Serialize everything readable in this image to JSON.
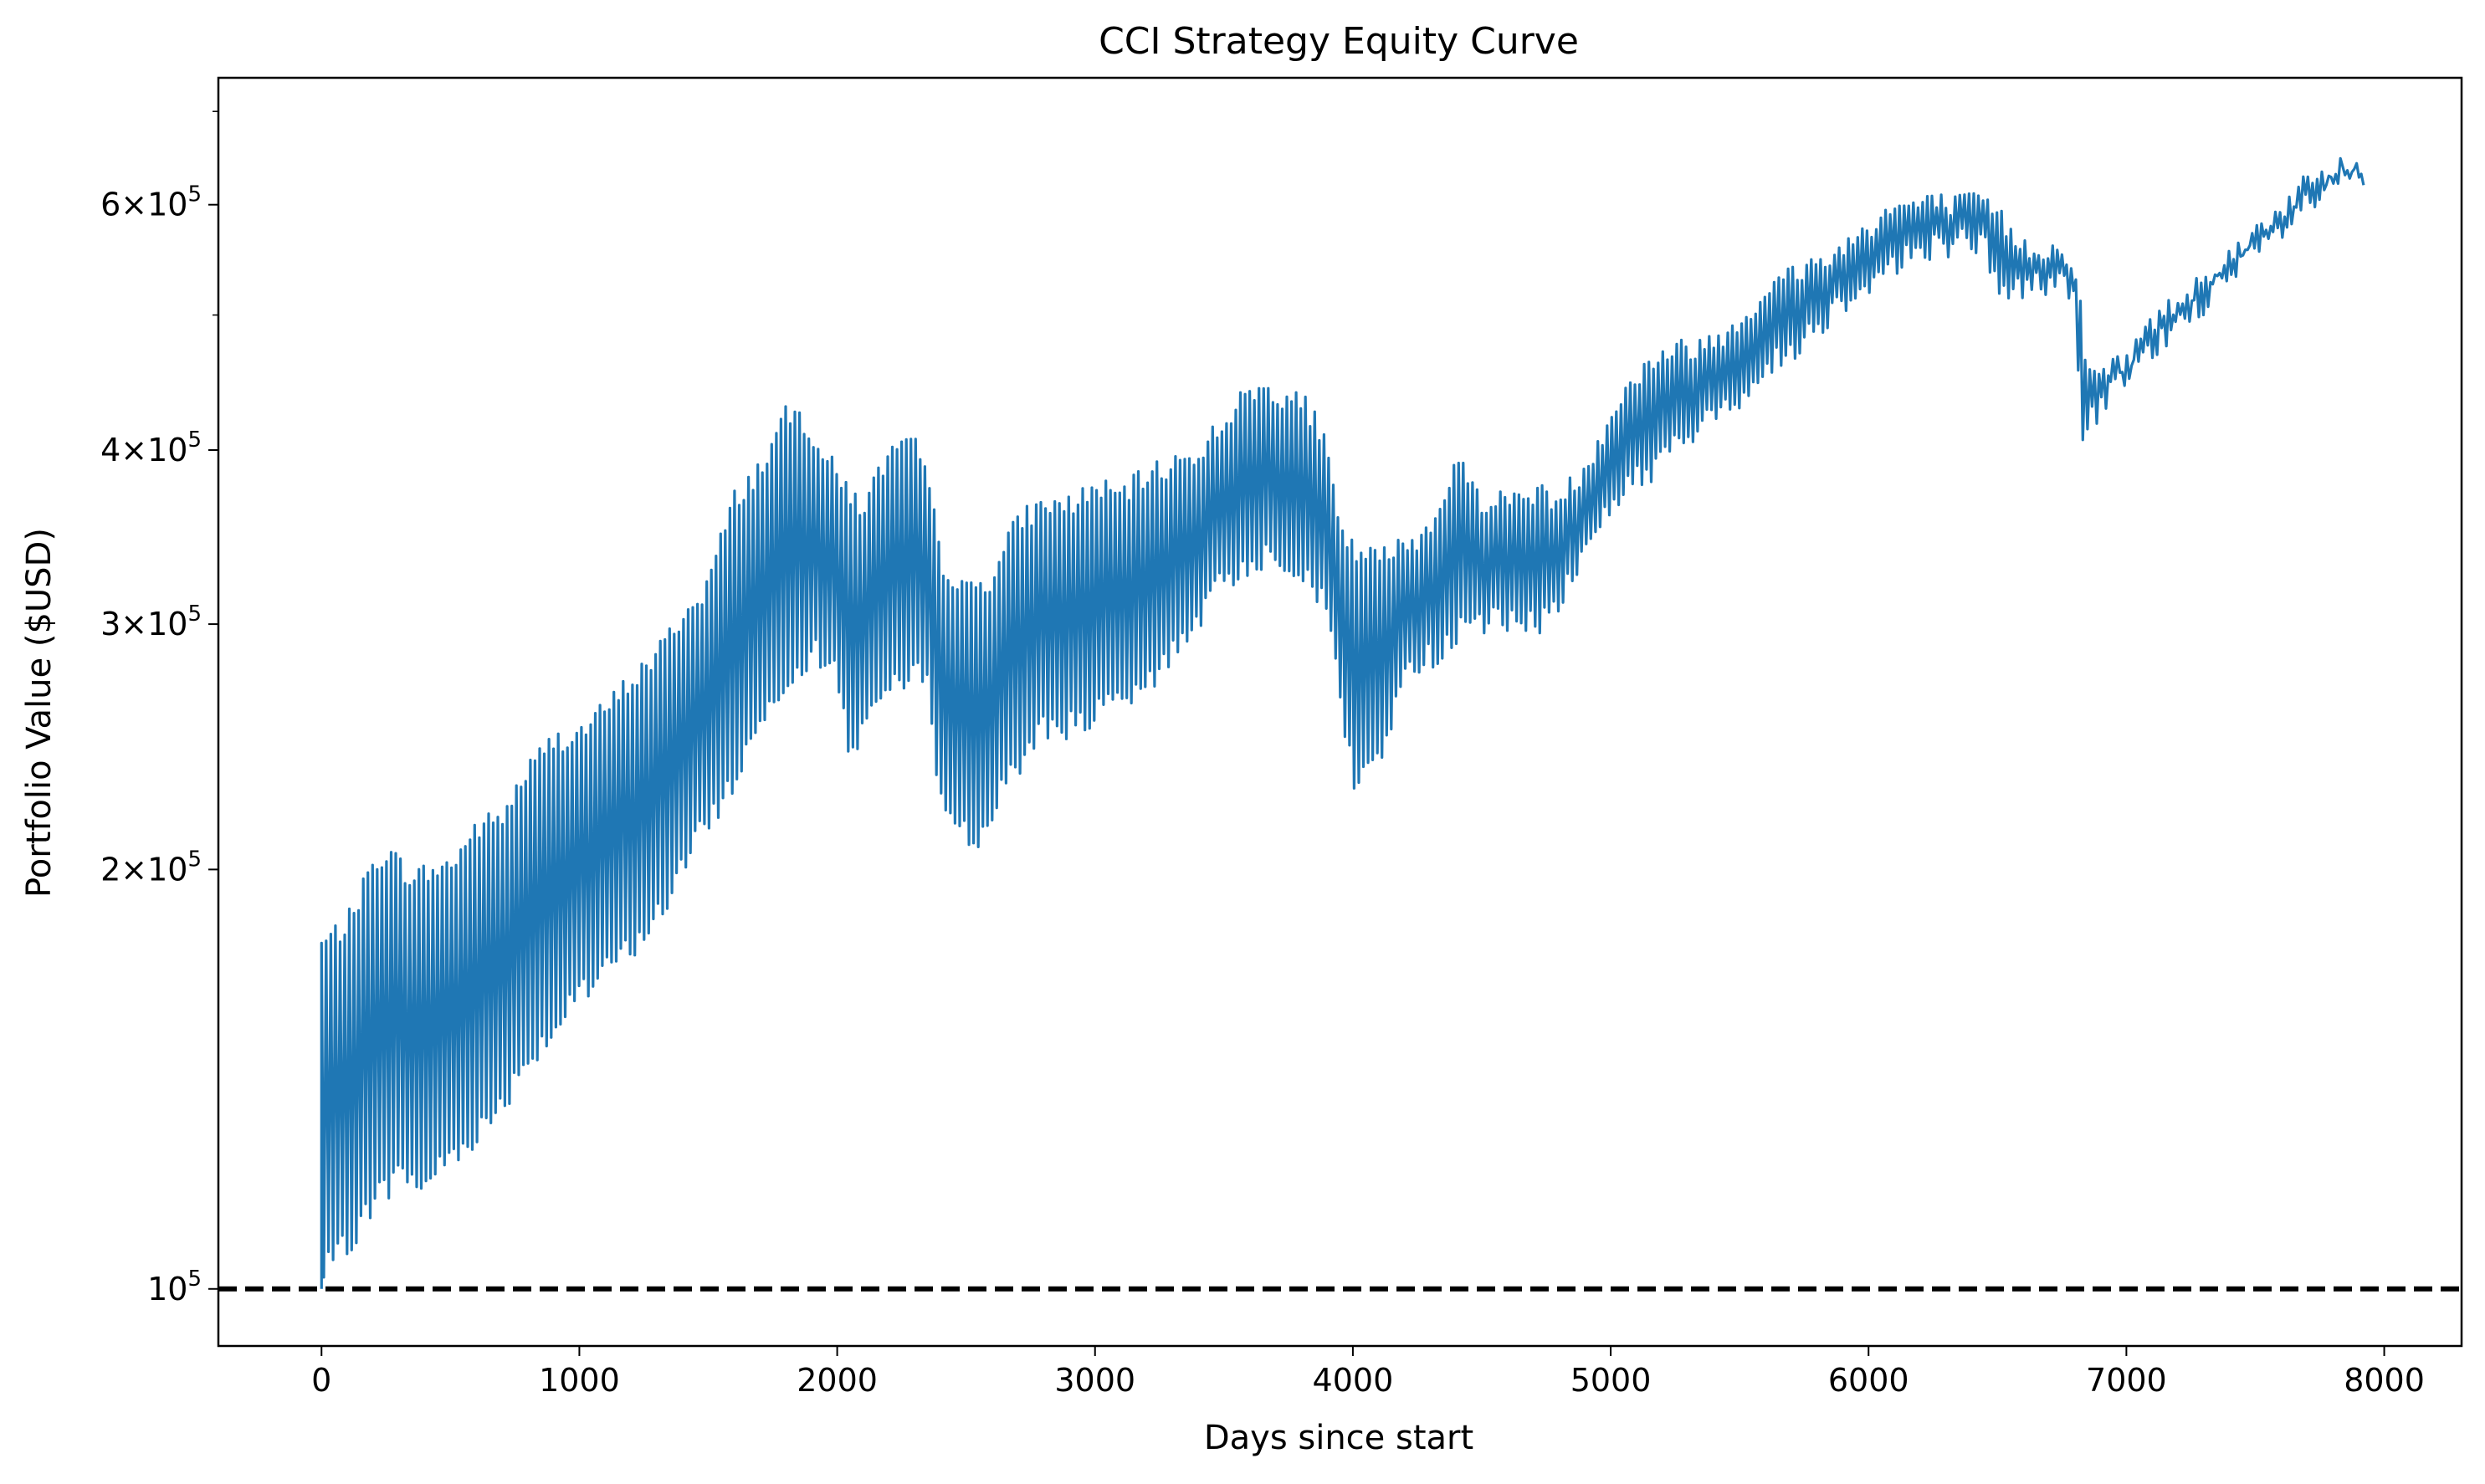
{
  "chart_data": {
    "type": "line",
    "title": "CCI Strategy Equity Curve",
    "xlabel": "Days since start",
    "ylabel": "Portfolio Value ($USD)",
    "xlim": [
      -400,
      8300
    ],
    "ylim": [
      91000,
      740000
    ],
    "yscale": "log",
    "grid": false,
    "x_ticks": [
      {
        "value": 0,
        "label": "0"
      },
      {
        "value": 1000,
        "label": "1000"
      },
      {
        "value": 2000,
        "label": "2000"
      },
      {
        "value": 3000,
        "label": "3000"
      },
      {
        "value": 4000,
        "label": "4000"
      },
      {
        "value": 5000,
        "label": "5000"
      },
      {
        "value": 6000,
        "label": "6000"
      },
      {
        "value": 7000,
        "label": "7000"
      },
      {
        "value": 8000,
        "label": "8000"
      }
    ],
    "y_ticks": [
      {
        "value": 100000,
        "mantissa": "",
        "exponent": "5"
      },
      {
        "value": 200000,
        "mantissa": "2",
        "exponent": "5"
      },
      {
        "value": 300000,
        "mantissa": "3",
        "exponent": "5"
      },
      {
        "value": 400000,
        "mantissa": "4",
        "exponent": "5"
      },
      {
        "value": 600000,
        "mantissa": "6",
        "exponent": "5"
      }
    ],
    "y_minor_ticks": [
      500000,
      700000
    ],
    "baseline": {
      "value": 100000,
      "style": "dashed",
      "color": "#000000"
    },
    "series": [
      {
        "color": "#1f77b4",
        "upper_envelope": [
          [
            0,
            180000
          ],
          [
            100,
            186000
          ],
          [
            200,
            205000
          ],
          [
            250,
            210000
          ],
          [
            350,
            201000
          ],
          [
            500,
            205000
          ],
          [
            600,
            218000
          ],
          [
            700,
            222000
          ],
          [
            800,
            240000
          ],
          [
            900,
            252000
          ],
          [
            1000,
            255000
          ],
          [
            1100,
            265000
          ],
          [
            1200,
            278000
          ],
          [
            1300,
            290000
          ],
          [
            1400,
            310000
          ],
          [
            1450,
            315000
          ],
          [
            1500,
            328000
          ],
          [
            1600,
            375000
          ],
          [
            1700,
            395000
          ],
          [
            1800,
            430000
          ],
          [
            1850,
            432000
          ],
          [
            1900,
            420000
          ],
          [
            2000,
            390000
          ],
          [
            2100,
            370000
          ],
          [
            2200,
            405000
          ],
          [
            2300,
            410000
          ],
          [
            2350,
            390000
          ],
          [
            2400,
            340000
          ],
          [
            2500,
            322000
          ],
          [
            2600,
            330000
          ],
          [
            2700,
            362000
          ],
          [
            2800,
            372000
          ],
          [
            2900,
            372000
          ],
          [
            3000,
            382000
          ],
          [
            3100,
            378000
          ],
          [
            3200,
            390000
          ],
          [
            3300,
            398000
          ],
          [
            3400,
            405000
          ],
          [
            3500,
            428000
          ],
          [
            3600,
            448000
          ],
          [
            3650,
            450000
          ],
          [
            3700,
            448000
          ],
          [
            3800,
            440000
          ],
          [
            3850,
            430000
          ],
          [
            3900,
            405000
          ],
          [
            3950,
            355000
          ],
          [
            4000,
            345000
          ],
          [
            4100,
            340000
          ],
          [
            4200,
            348000
          ],
          [
            4300,
            358000
          ],
          [
            4400,
            400000
          ],
          [
            4500,
            375000
          ],
          [
            4600,
            375000
          ],
          [
            4700,
            380000
          ],
          [
            4800,
            375000
          ],
          [
            4900,
            395000
          ],
          [
            5000,
            432000
          ],
          [
            5100,
            460000
          ],
          [
            5200,
            478000
          ],
          [
            5300,
            482000
          ],
          [
            5400,
            488000
          ],
          [
            5500,
            505000
          ],
          [
            5600,
            528000
          ],
          [
            5700,
            545000
          ],
          [
            5800,
            555000
          ],
          [
            5900,
            568000
          ],
          [
            6000,
            590000
          ],
          [
            6100,
            608000
          ],
          [
            6200,
            612000
          ],
          [
            6300,
            612000
          ],
          [
            6400,
            612000
          ],
          [
            6450,
            615000
          ],
          [
            6500,
            600000
          ],
          [
            6600,
            570000
          ],
          [
            6700,
            568000
          ],
          [
            6800,
            560000
          ],
          [
            6850,
            460000
          ],
          [
            6900,
            465000
          ],
          [
            7000,
            472000
          ],
          [
            7100,
            505000
          ],
          [
            7200,
            520000
          ],
          [
            7300,
            545000
          ],
          [
            7400,
            560000
          ],
          [
            7500,
            585000
          ],
          [
            7600,
            608000
          ],
          [
            7700,
            632000
          ],
          [
            7750,
            640000
          ],
          [
            7800,
            640000
          ],
          [
            7830,
            655000
          ],
          [
            7850,
            648000
          ],
          [
            7920,
            640000
          ]
        ],
        "lower_envelope": [
          [
            0,
            100000
          ],
          [
            100,
            105000
          ],
          [
            200,
            113000
          ],
          [
            300,
            118000
          ],
          [
            400,
            116000
          ],
          [
            500,
            122000
          ],
          [
            600,
            126000
          ],
          [
            700,
            133000
          ],
          [
            800,
            143000
          ],
          [
            900,
            150000
          ],
          [
            1000,
            158000
          ],
          [
            1100,
            165000
          ],
          [
            1200,
            172000
          ],
          [
            1300,
            180000
          ],
          [
            1400,
            196000
          ],
          [
            1500,
            212000
          ],
          [
            1600,
            226000
          ],
          [
            1700,
            250000
          ],
          [
            1800,
            268000
          ],
          [
            1900,
            280000
          ],
          [
            2000,
            272000
          ],
          [
            2050,
            232000
          ],
          [
            2100,
            252000
          ],
          [
            2200,
            262000
          ],
          [
            2300,
            268000
          ],
          [
            2350,
            275000
          ],
          [
            2400,
            218000
          ],
          [
            2500,
            208000
          ],
          [
            2520,
            202000
          ],
          [
            2600,
            215000
          ],
          [
            2700,
            232000
          ],
          [
            2800,
            248000
          ],
          [
            2900,
            248000
          ],
          [
            3000,
            252000
          ],
          [
            3100,
            258000
          ],
          [
            3200,
            262000
          ],
          [
            3300,
            282000
          ],
          [
            3400,
            295000
          ],
          [
            3500,
            315000
          ],
          [
            3600,
            325000
          ],
          [
            3700,
            330000
          ],
          [
            3800,
            322000
          ],
          [
            3900,
            300000
          ],
          [
            3950,
            262000
          ],
          [
            4000,
            225000
          ],
          [
            4100,
            235000
          ],
          [
            4200,
            268000
          ],
          [
            4300,
            278000
          ],
          [
            4400,
            288000
          ],
          [
            4500,
            295000
          ],
          [
            4600,
            294000
          ],
          [
            4700,
            292000
          ],
          [
            4800,
            305000
          ],
          [
            4900,
            330000
          ],
          [
            5000,
            358000
          ],
          [
            5100,
            372000
          ],
          [
            5200,
            385000
          ],
          [
            5300,
            400000
          ],
          [
            5400,
            412000
          ],
          [
            5500,
            428000
          ],
          [
            5600,
            445000
          ],
          [
            5700,
            462000
          ],
          [
            5800,
            480000
          ],
          [
            5900,
            500000
          ],
          [
            6000,
            518000
          ],
          [
            6100,
            530000
          ],
          [
            6200,
            545000
          ],
          [
            6300,
            550000
          ],
          [
            6400,
            552000
          ],
          [
            6450,
            548000
          ],
          [
            6500,
            508000
          ],
          [
            6550,
            510000
          ],
          [
            6700,
            515000
          ],
          [
            6800,
            512000
          ],
          [
            6820,
            400000
          ],
          [
            6900,
            420000
          ],
          [
            7000,
            440000
          ],
          [
            7100,
            460000
          ],
          [
            7200,
            482000
          ],
          [
            7300,
            500000
          ],
          [
            7400,
            518000
          ],
          [
            7500,
            540000
          ],
          [
            7600,
            560000
          ],
          [
            7700,
            585000
          ],
          [
            7800,
            605000
          ],
          [
            7850,
            610000
          ],
          [
            7920,
            620000
          ]
        ]
      }
    ]
  }
}
